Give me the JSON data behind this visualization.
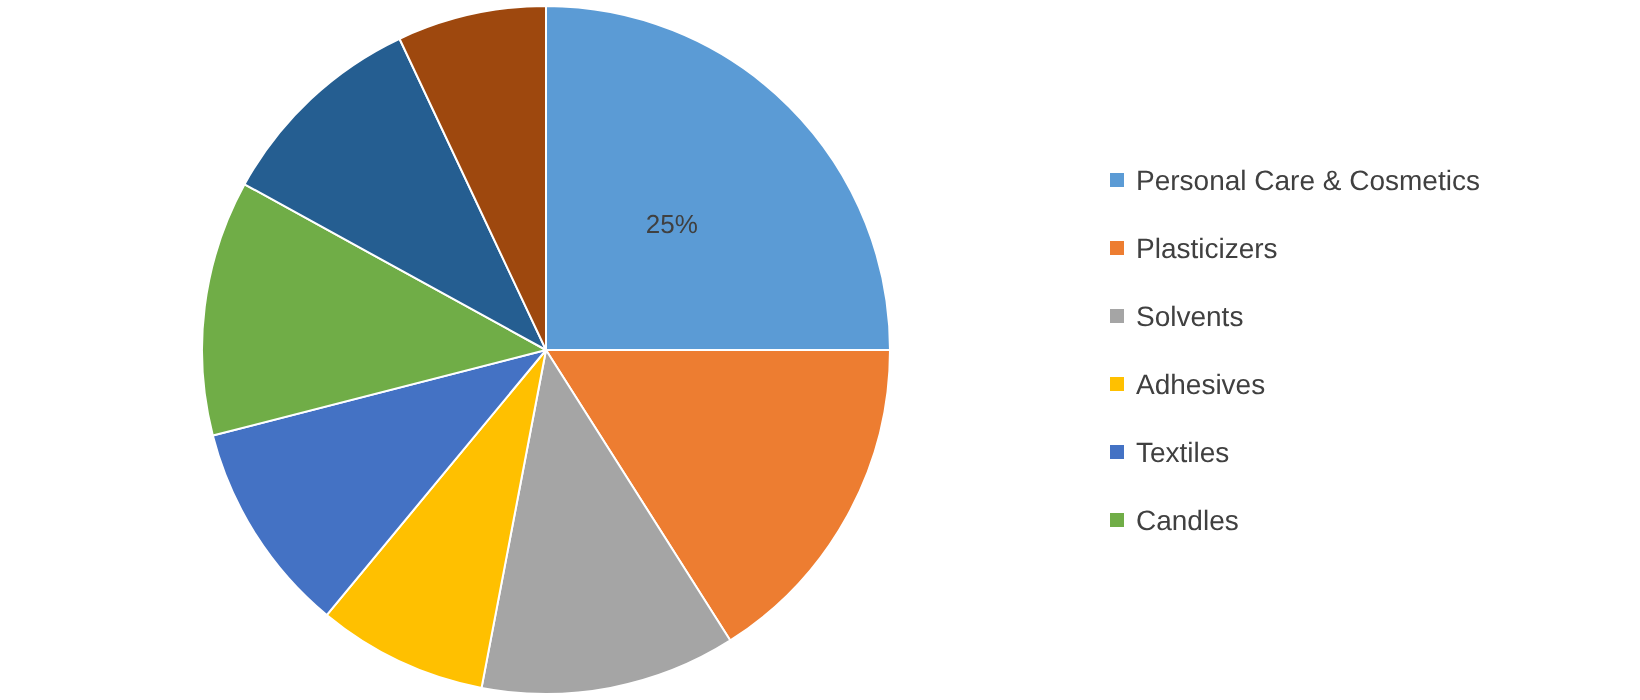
{
  "chart_data": {
    "type": "pie",
    "categories": [
      "Personal Care & Cosmetics",
      "Plasticizers",
      "Solvents",
      "Adhesives",
      "Textiles",
      "Candles",
      null,
      null
    ],
    "values": [
      25,
      16,
      12,
      8,
      10,
      12,
      10,
      7
    ],
    "colors": [
      "#5b9bd5",
      "#ed7d31",
      "#a5a5a5",
      "#ffc000",
      "#4472c4",
      "#70ad47",
      "#255e91",
      "#9e480e"
    ],
    "value_labels": [
      "25%",
      null,
      null,
      null,
      null,
      null,
      null,
      null
    ],
    "legend": "right"
  }
}
